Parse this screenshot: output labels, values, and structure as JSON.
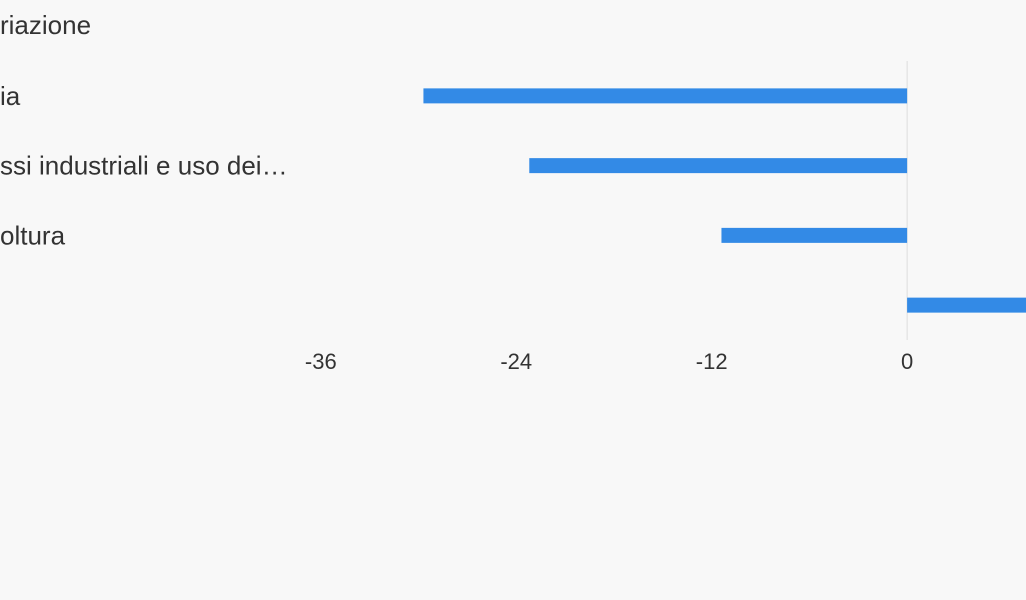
{
  "chart_data": {
    "type": "hbar",
    "title": "riazione",
    "categories": [
      "ia",
      "ssi industriali e uso dei…",
      "oltura",
      null
    ],
    "values": [
      -29.7,
      -23.2,
      -11.4,
      7.3
    ],
    "color": "#338ae6",
    "xlim": [
      -55.7,
      7.3
    ],
    "xticks": [
      -36,
      -24,
      -12,
      0
    ]
  }
}
